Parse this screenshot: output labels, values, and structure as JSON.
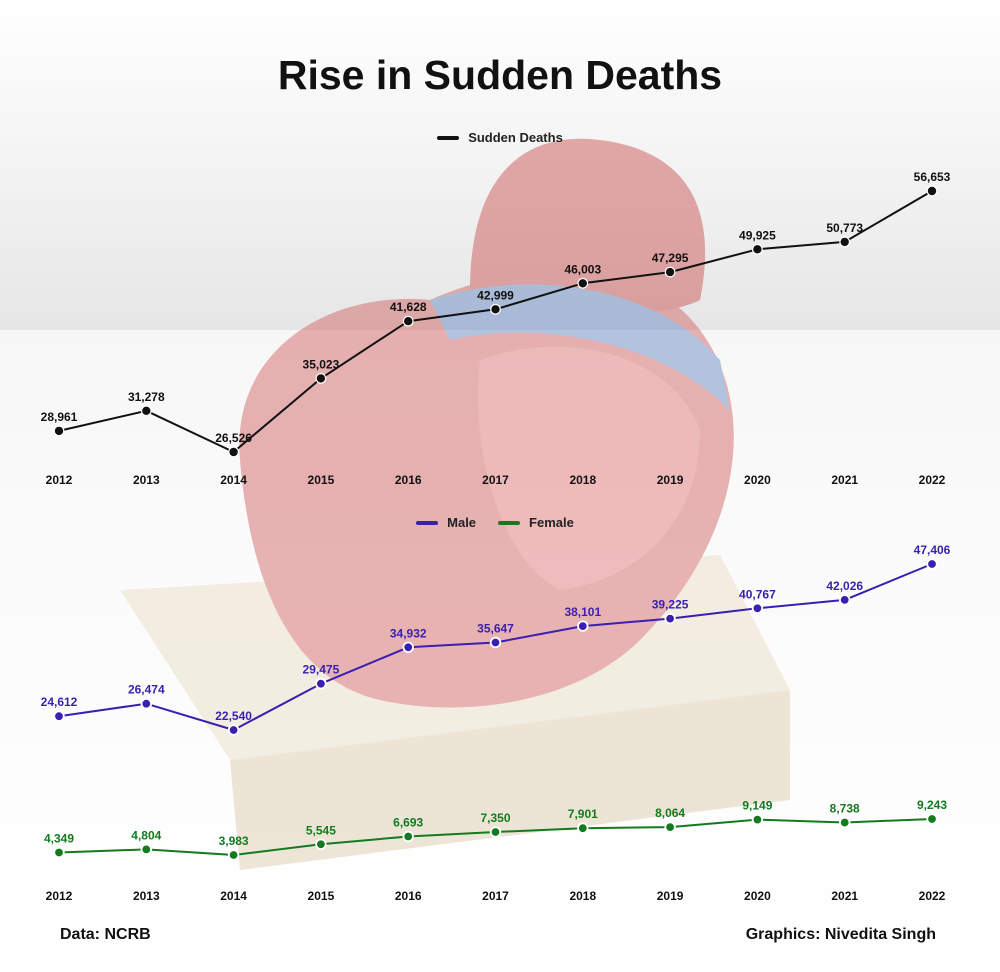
{
  "title": "Rise in Sudden Deaths",
  "legend_top": [
    {
      "label": "Sudden Deaths",
      "color": "#111111"
    }
  ],
  "legend_bottom": [
    {
      "label": "Male",
      "color": "#3a1fb0"
    },
    {
      "label": "Female",
      "color": "#137a1e"
    }
  ],
  "source": "Data: NCRB",
  "credit": "Graphics: Nivedita Singh",
  "chart_data": [
    {
      "type": "line",
      "x": [
        "2012",
        "2013",
        "2014",
        "2015",
        "2016",
        "2017",
        "2018",
        "2019",
        "2020",
        "2021",
        "2022"
      ],
      "series": [
        {
          "name": "Sudden Deaths",
          "color": "#111111",
          "values": [
            28961,
            31278,
            26526,
            35023,
            41628,
            42999,
            46003,
            47295,
            49925,
            50773,
            56653
          ],
          "labels": [
            "28,961",
            "31,278",
            "26,526",
            "35,023",
            "41,628",
            "42,999",
            "46,003",
            "47,295",
            "49,925",
            "50,773",
            "56,653"
          ]
        }
      ],
      "grid": false,
      "legend_position": "top-center"
    },
    {
      "type": "line",
      "x": [
        "2012",
        "2013",
        "2014",
        "2015",
        "2016",
        "2017",
        "2018",
        "2019",
        "2020",
        "2021",
        "2022"
      ],
      "series": [
        {
          "name": "Male",
          "color": "#3a1fb0",
          "values": [
            24612,
            26474,
            22540,
            29475,
            34932,
            35647,
            38101,
            39225,
            40767,
            42026,
            47406
          ],
          "labels": [
            "24,612",
            "26,474",
            "22,540",
            "29,475",
            "34,932",
            "35,647",
            "38,101",
            "39,225",
            "40,767",
            "42,026",
            "47,406"
          ]
        },
        {
          "name": "Female",
          "color": "#137a1e",
          "values": [
            4349,
            4804,
            3983,
            5545,
            6693,
            7350,
            7901,
            8064,
            9149,
            8738,
            9243
          ],
          "labels": [
            "4,349",
            "4,804",
            "3,983",
            "5,545",
            "6,693",
            "7,350",
            "7,901",
            "8,064",
            "9,149",
            "8,738",
            "9,243"
          ]
        }
      ],
      "grid": false,
      "legend_position": "top-center"
    }
  ]
}
